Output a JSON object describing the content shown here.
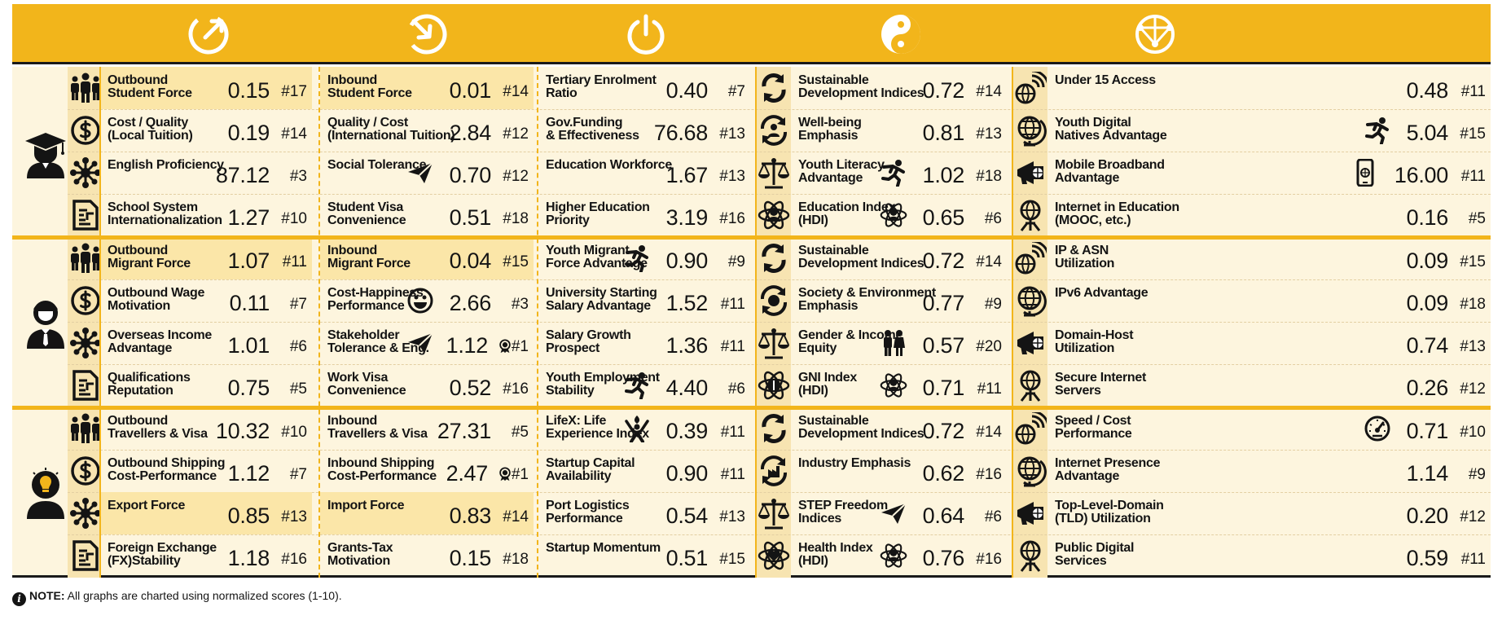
{
  "note": {
    "bold": "NOTE:",
    "text": " All graphs are charted using normalized scores (1-10)."
  },
  "column_icons": [
    "outbound-arrow-icon",
    "inbound-arrow-icon",
    "power-icon",
    "yin-yang-icon",
    "globe-network-icon"
  ],
  "sections": [
    {
      "icon": "graduate-icon",
      "rows": [
        {
          "icon": "people-group-icon",
          "cells": [
            {
              "label": "Outbound\nStudent Force",
              "value": "0.15",
              "rank": "#17",
              "hl": true
            },
            {
              "label": "Inbound\nStudent Force",
              "value": "0.01",
              "rank": "#14",
              "hl": true
            },
            {
              "label": "Tertiary Enrolment\nRatio",
              "value": "0.40",
              "rank": "#7"
            },
            {
              "label": "Sustainable\nDevelopment Indices",
              "value": "0.72",
              "rank": "#14",
              "icon": "cycle-arrows-icon"
            },
            {
              "label": "Under 15 Access",
              "value": "0.48",
              "rank": "#11",
              "icon": "wifi-globe-icon"
            }
          ]
        },
        {
          "icon": "dollar-coin-icon",
          "cells": [
            {
              "label": "Cost / Quality\n(Local Tuition)",
              "value": "0.19",
              "rank": "#14"
            },
            {
              "label": "Quality / Cost\n(International Tuition)",
              "value": "2.84",
              "rank": "#12"
            },
            {
              "label": "Gov.Funding\n& Effectiveness",
              "value": "76.68",
              "rank": "#13"
            },
            {
              "label": "Well-being\nEmphasis",
              "value": "0.81",
              "rank": "#13",
              "icon": "person-cycle-icon"
            },
            {
              "label": "Youth Digital\nNatives Advantage",
              "value": "5.04",
              "rank": "#15",
              "icon": "globe-stand-icon",
              "inline": "running-person-icon"
            }
          ]
        },
        {
          "icon": "network-hub-icon",
          "cells": [
            {
              "label": "English Proficiency",
              "value": "87.12",
              "rank": "#3"
            },
            {
              "label": "Social Tolerance",
              "value": "0.70",
              "rank": "#12",
              "inline": "paper-plane-icon"
            },
            {
              "label": "Education Workforce",
              "value": "1.67",
              "rank": "#13"
            },
            {
              "label": "Youth Literacy\nAdvantage",
              "value": "1.02",
              "rank": "#18",
              "icon": "balance-scale-icon",
              "inline": "running-person-icon"
            },
            {
              "label": "Mobile Broadband\nAdvantage",
              "value": "16.00",
              "rank": "#11",
              "icon": "megaphone-globe-icon",
              "inline": "mobile-phone-icon"
            }
          ]
        },
        {
          "icon": "document-chart-icon",
          "cells": [
            {
              "label": "School System\nInternationalization",
              "value": "1.27",
              "rank": "#10"
            },
            {
              "label": "Student Visa\nConvenience",
              "value": "0.51",
              "rank": "#18"
            },
            {
              "label": "Higher Education\nPriority",
              "value": "3.19",
              "rank": "#16"
            },
            {
              "label": "Education Index\n(HDI)",
              "value": "0.65",
              "rank": "#6",
              "icon": "atom-person-icon",
              "inline": "atom-person-icon"
            },
            {
              "label": "Internet in Education\n(MOOC, etc.)",
              "value": "0.16",
              "rank": "#5",
              "icon": "globe-tripod-icon"
            }
          ]
        }
      ]
    },
    {
      "icon": "businessman-icon",
      "rows": [
        {
          "icon": "people-group-icon",
          "cells": [
            {
              "label": "Outbound\nMigrant Force",
              "value": "1.07",
              "rank": "#11",
              "hl": true
            },
            {
              "label": "Inbound\nMigrant Force",
              "value": "0.04",
              "rank": "#15",
              "hl": true
            },
            {
              "label": "Youth Migrant\nForce Advantage",
              "value": "0.90",
              "rank": "#9",
              "inline": "running-person-icon"
            },
            {
              "label": "Sustainable\nDevelopment Indices",
              "value": "0.72",
              "rank": "#14",
              "icon": "cycle-arrows-icon"
            },
            {
              "label": "IP & ASN\nUtilization",
              "value": "0.09",
              "rank": "#15",
              "icon": "wifi-globe-icon"
            }
          ]
        },
        {
          "icon": "dollar-coin-icon",
          "cells": [
            {
              "label": "Outbound Wage\nMotivation",
              "value": "0.11",
              "rank": "#7"
            },
            {
              "label": "Cost-Happiness\nPerformance",
              "value": "2.66",
              "rank": "#3",
              "inline": "smiley-icon"
            },
            {
              "label": "University Starting\nSalary Advantage",
              "value": "1.52",
              "rank": "#11"
            },
            {
              "label": "Society & Environment\nEmphasis",
              "value": "0.77",
              "rank": "#9",
              "icon": "globe-cycle-icon"
            },
            {
              "label": "IPv6 Advantage",
              "value": "0.09",
              "rank": "#18",
              "icon": "globe-stand-icon"
            }
          ]
        },
        {
          "icon": "network-hub-icon",
          "cells": [
            {
              "label": "Overseas Income\nAdvantage",
              "value": "1.01",
              "rank": "#6"
            },
            {
              "label": "Stakeholder\nTolerance & Eng.",
              "value": "1.12",
              "rank": "#1",
              "inline": "paper-plane-icon",
              "badge": true
            },
            {
              "label": "Salary Growth\nProspect",
              "value": "1.36",
              "rank": "#11"
            },
            {
              "label": "Gender & Income\nEquity",
              "value": "0.57",
              "rank": "#20",
              "icon": "balance-scale-icon",
              "inline": "couple-icon"
            },
            {
              "label": "Domain-Host\nUtilization",
              "value": "0.74",
              "rank": "#13",
              "icon": "megaphone-globe-icon"
            }
          ]
        },
        {
          "icon": "document-chart-icon",
          "cells": [
            {
              "label": "Qualifications\nReputation",
              "value": "0.75",
              "rank": "#5"
            },
            {
              "label": "Work Visa\nConvenience",
              "value": "0.52",
              "rank": "#16"
            },
            {
              "label": "Youth Employment\nStability",
              "value": "4.40",
              "rank": "#6",
              "inline": "running-person-icon"
            },
            {
              "label": "GNI Index\n(HDI)",
              "value": "0.71",
              "rank": "#11",
              "icon": "atom-dollar-icon",
              "inline": "atom-person-icon"
            },
            {
              "label": "Secure Internet\nServers",
              "value": "0.26",
              "rank": "#12",
              "icon": "globe-tripod-icon"
            }
          ]
        }
      ]
    },
    {
      "icon": "idea-person-icon",
      "rows": [
        {
          "icon": "people-group-icon",
          "cells": [
            {
              "label": "Outbound\nTravellers & Visa",
              "value": "10.32",
              "rank": "#10"
            },
            {
              "label": "Inbound\nTravellers & Visa",
              "value": "27.31",
              "rank": "#5"
            },
            {
              "label": "LifeX: Life\nExperience Index",
              "value": "0.39",
              "rank": "#11",
              "inline": "torch-person-icon"
            },
            {
              "label": "Sustainable\nDevelopment Indices",
              "value": "0.72",
              "rank": "#14",
              "icon": "cycle-arrows-icon"
            },
            {
              "label": "Speed / Cost\nPerformance",
              "value": "0.71",
              "rank": "#10",
              "icon": "wifi-globe-icon",
              "inline": "speedometer-icon"
            }
          ]
        },
        {
          "icon": "dollar-coin-icon",
          "cells": [
            {
              "label": "Outbound Shipping\nCost-Performance",
              "value": "1.12",
              "rank": "#7"
            },
            {
              "label": "Inbound Shipping\nCost-Performance",
              "value": "2.47",
              "rank": "#1",
              "badge": true
            },
            {
              "label": "Startup Capital\nAvailability",
              "value": "0.90",
              "rank": "#11"
            },
            {
              "label": "Industry Emphasis",
              "value": "0.62",
              "rank": "#16",
              "icon": "factory-cycle-icon"
            },
            {
              "label": "Internet Presence\nAdvantage",
              "value": "1.14",
              "rank": "#9",
              "icon": "globe-stand-icon"
            }
          ]
        },
        {
          "icon": "network-hub-icon",
          "cells": [
            {
              "label": "Export Force",
              "value": "0.85",
              "rank": "#13",
              "hl": true
            },
            {
              "label": "Import Force",
              "value": "0.83",
              "rank": "#14",
              "hl": true
            },
            {
              "label": "Port Logistics\nPerformance",
              "value": "0.54",
              "rank": "#13"
            },
            {
              "label": "STEP Freedom\nIndices",
              "value": "0.64",
              "rank": "#6",
              "icon": "balance-scale-icon",
              "inline": "paper-plane-icon"
            },
            {
              "label": "Top-Level-Domain\n(TLD) Utilization",
              "value": "0.20",
              "rank": "#12",
              "icon": "megaphone-globe-icon"
            }
          ]
        },
        {
          "icon": "document-chart-icon",
          "cells": [
            {
              "label": "Foreign Exchange\n(FX)Stability",
              "value": "1.18",
              "rank": "#16"
            },
            {
              "label": "Grants-Tax\nMotivation",
              "value": "0.15",
              "rank": "#18"
            },
            {
              "label": "Startup Momentum",
              "value": "0.51",
              "rank": "#15"
            },
            {
              "label": "Health Index\n(HDI)",
              "value": "0.76",
              "rank": "#16",
              "icon": "atom-heart-icon",
              "inline": "atom-person-icon"
            },
            {
              "label": "Public Digital\nServices",
              "value": "0.59",
              "rank": "#11",
              "icon": "globe-tripod-icon"
            }
          ]
        }
      ]
    }
  ]
}
